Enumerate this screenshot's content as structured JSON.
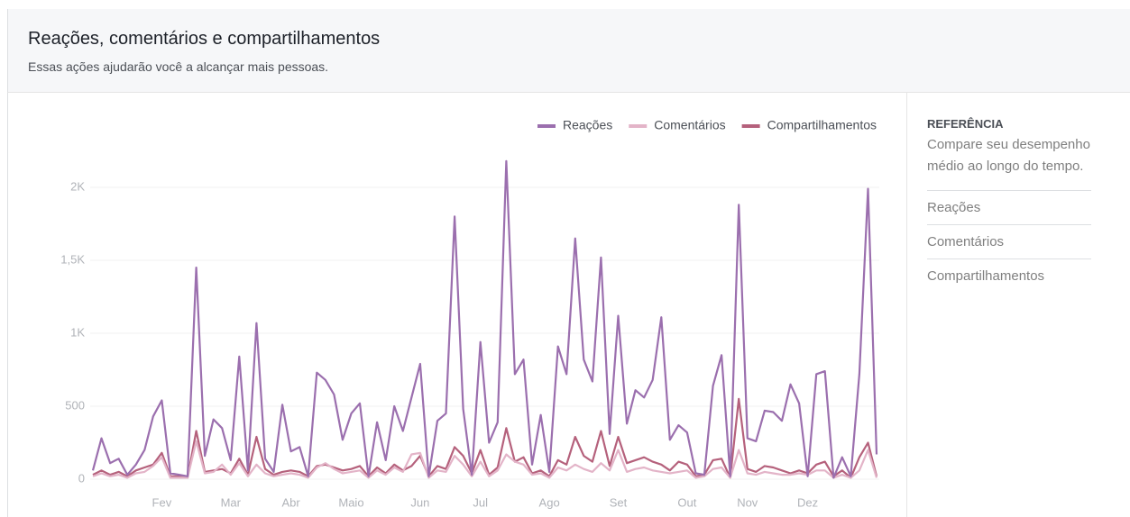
{
  "header": {
    "title": "Reações, comentários e compartilhamentos",
    "subtitle": "Essas ações ajudarão você a alcançar mais pessoas."
  },
  "sidebar": {
    "heading": "REFERÊNCIA",
    "description": "Compare seu desempenho médio ao longo do tempo.",
    "items": [
      "Reações",
      "Comentários",
      "Compartilhamentos"
    ]
  },
  "chart_data": {
    "type": "line",
    "categories": [
      null,
      null,
      null,
      null,
      null,
      null,
      null,
      null,
      "Fev",
      null,
      null,
      null,
      null,
      null,
      null,
      null,
      "Mar",
      null,
      null,
      null,
      null,
      null,
      null,
      "Abr",
      null,
      null,
      null,
      null,
      null,
      null,
      "Maio",
      null,
      null,
      null,
      null,
      null,
      null,
      null,
      "Jun",
      null,
      null,
      null,
      null,
      null,
      null,
      "Jul",
      null,
      null,
      null,
      null,
      null,
      null,
      null,
      "Ago",
      null,
      null,
      null,
      null,
      null,
      null,
      null,
      "Set",
      null,
      null,
      null,
      null,
      null,
      null,
      null,
      "Out",
      null,
      null,
      null,
      null,
      null,
      null,
      "Nov",
      null,
      null,
      null,
      null,
      null,
      null,
      "Dez",
      null,
      null,
      null,
      null,
      null,
      null,
      null,
      null
    ],
    "series": [
      {
        "name": "Reações",
        "color": "#9b6fae",
        "values": [
          60,
          280,
          110,
          140,
          30,
          100,
          200,
          430,
          540,
          40,
          30,
          20,
          1450,
          160,
          410,
          350,
          130,
          840,
          60,
          1070,
          140,
          50,
          510,
          190,
          220,
          20,
          730,
          680,
          580,
          270,
          450,
          520,
          20,
          390,
          130,
          500,
          330,
          560,
          790,
          20,
          400,
          450,
          1800,
          480,
          30,
          940,
          250,
          390,
          2180,
          720,
          820,
          100,
          440,
          50,
          910,
          720,
          1650,
          820,
          670,
          1520,
          310,
          1120,
          380,
          610,
          560,
          680,
          1110,
          270,
          370,
          320,
          40,
          30,
          640,
          850,
          20,
          1880,
          280,
          260,
          470,
          460,
          400,
          650,
          520,
          20,
          720,
          740,
          10,
          150,
          20,
          720,
          1990,
          170
        ]
      },
      {
        "name": "Comentários",
        "color": "#e3b4c8",
        "values": [
          20,
          40,
          20,
          30,
          10,
          40,
          50,
          90,
          150,
          10,
          10,
          10,
          260,
          40,
          50,
          100,
          30,
          110,
          20,
          100,
          40,
          20,
          30,
          40,
          30,
          10,
          80,
          110,
          70,
          40,
          50,
          60,
          10,
          60,
          30,
          80,
          50,
          170,
          180,
          10,
          60,
          50,
          160,
          100,
          20,
          120,
          20,
          60,
          170,
          120,
          100,
          30,
          40,
          10,
          80,
          60,
          100,
          70,
          50,
          110,
          60,
          200,
          50,
          70,
          80,
          60,
          50,
          40,
          50,
          60,
          10,
          20,
          70,
          80,
          10,
          200,
          40,
          30,
          50,
          40,
          30,
          30,
          40,
          30,
          60,
          60,
          10,
          30,
          10,
          60,
          200,
          10
        ]
      },
      {
        "name": "Compartilhamentos",
        "color": "#b5617c",
        "values": [
          30,
          60,
          30,
          50,
          20,
          60,
          80,
          100,
          180,
          20,
          20,
          10,
          330,
          50,
          60,
          70,
          40,
          140,
          30,
          290,
          70,
          30,
          50,
          60,
          50,
          20,
          90,
          100,
          80,
          60,
          70,
          90,
          20,
          80,
          40,
          100,
          60,
          90,
          160,
          20,
          90,
          70,
          220,
          160,
          40,
          200,
          30,
          80,
          350,
          120,
          150,
          40,
          60,
          20,
          130,
          100,
          290,
          160,
          120,
          330,
          90,
          290,
          110,
          130,
          150,
          120,
          100,
          60,
          120,
          100,
          20,
          30,
          130,
          140,
          10,
          550,
          70,
          50,
          90,
          80,
          60,
          40,
          60,
          40,
          100,
          120,
          20,
          60,
          10,
          150,
          250,
          20
        ]
      }
    ],
    "ylim": [
      0,
      2250
    ],
    "yticks": [
      0,
      500,
      {
        "value": 1000,
        "label": "1K"
      },
      {
        "value": 1500,
        "label": "1,5K"
      },
      {
        "value": 2000,
        "label": "2K"
      }
    ],
    "grid": true,
    "legend": "top-right"
  }
}
